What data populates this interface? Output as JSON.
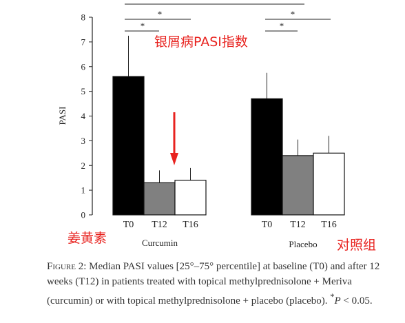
{
  "chart_data": {
    "type": "bar",
    "ylabel": "PASI",
    "ylim": [
      0,
      8
    ],
    "yticks": [
      "0",
      "1",
      "2",
      "3",
      "4",
      "5",
      "6",
      "7",
      "8"
    ],
    "grid": false,
    "groups": [
      {
        "name": "Curcumin",
        "annotation": "姜黄素",
        "categories": [
          "T0",
          "T12",
          "T16"
        ],
        "values": [
          5.6,
          1.3,
          1.4
        ],
        "error_upper": [
          7.25,
          1.8,
          1.9
        ]
      },
      {
        "name": "Placebo",
        "annotation": "对照组",
        "categories": [
          "T0",
          "T12",
          "T16"
        ],
        "values": [
          4.7,
          2.4,
          2.5
        ],
        "error_upper": [
          5.75,
          3.05,
          3.2
        ]
      }
    ],
    "bar_colors": [
      "#000000",
      "#808080",
      "#ffffff"
    ],
    "significance_marker": "*",
    "title_annotation": "银屑病PASI指数",
    "annotation_color": "#e8231f"
  },
  "caption": {
    "label": "Figure 2:",
    "text_before_p": " Median PASI values [25°–75° percentile] at baseline (T0) and after 12 weeks (T12) in patients treated with topical methylprednisolone + Meriva (curcumin) or with topical methylprednisolone + placebo (placebo). ",
    "star": "*",
    "p": "P",
    "text_after_p": " < 0.05."
  }
}
